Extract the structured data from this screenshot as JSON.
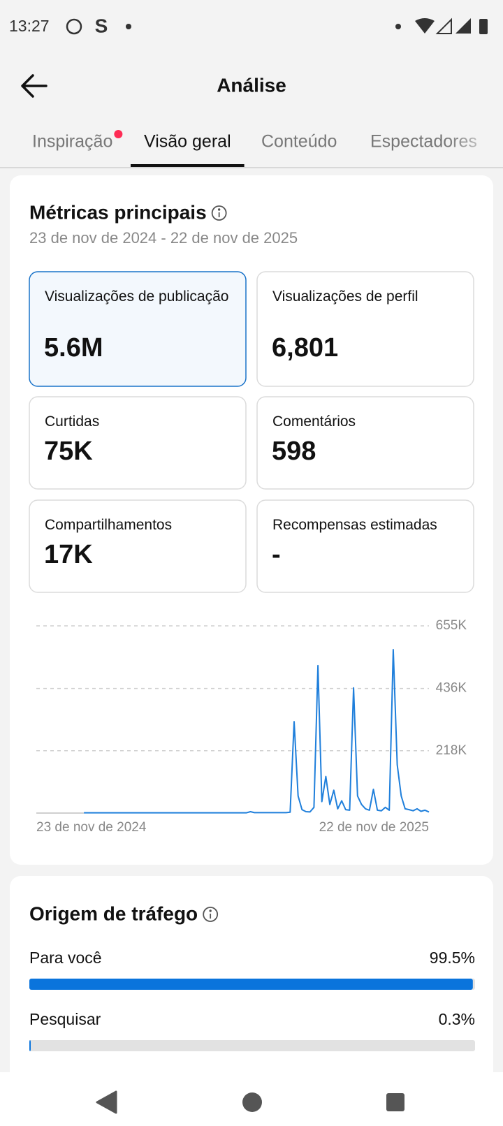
{
  "status_bar": {
    "time": "13:27",
    "app_icon": "S"
  },
  "header": {
    "title": "Análise"
  },
  "tabs": {
    "items": [
      "Inspiração",
      "Visão geral",
      "Conteúdo",
      "Espectadores"
    ],
    "active": 1
  },
  "metrics": {
    "title": "Métricas principais",
    "date_range": "23 de nov de 2024 - 22 de nov de 2025",
    "selected": 0,
    "cards": [
      {
        "label": "Visualizações de publicação",
        "value": "5.6M"
      },
      {
        "label": "Visualizações de perfil",
        "value": "6,801"
      },
      {
        "label": "Curtidas",
        "value": "75K"
      },
      {
        "label": "Comentários",
        "value": "598"
      },
      {
        "label": "Compartilhamentos",
        "value": "17K"
      },
      {
        "label": "Recompensas estimadas",
        "value": "-"
      }
    ]
  },
  "chart_data": {
    "type": "line",
    "color": "#1f7fdb",
    "grid": true,
    "ylim": [
      0,
      655000
    ],
    "yticks": [
      {
        "value": 218000,
        "label": "218K"
      },
      {
        "value": 436000,
        "label": "436K"
      },
      {
        "value": 655000,
        "label": "655K"
      }
    ],
    "categories": [
      "23 de nov de 2024",
      null,
      null,
      null,
      null,
      null,
      null,
      null,
      null,
      null,
      null,
      null,
      null,
      null,
      null,
      null,
      null,
      null,
      null,
      null,
      null,
      null,
      null,
      null,
      null,
      null,
      null,
      null,
      null,
      null,
      null,
      null,
      null,
      null,
      null,
      null,
      null,
      null,
      null,
      null,
      null,
      null,
      null,
      null,
      null,
      null,
      null,
      null,
      null,
      null,
      null,
      null,
      null,
      null,
      null,
      null,
      null,
      null,
      null,
      null,
      null,
      null,
      null,
      null,
      null,
      null,
      null,
      null,
      null,
      null,
      null,
      null,
      null,
      null,
      null,
      null,
      null,
      null,
      null,
      null,
      null,
      null,
      null,
      null,
      null,
      null,
      null,
      null,
      null,
      null,
      null,
      null,
      null,
      null,
      null,
      null,
      null,
      null,
      null,
      "22 de nov de 2025"
    ],
    "values": [
      null,
      null,
      null,
      null,
      null,
      null,
      null,
      null,
      null,
      null,
      null,
      null,
      1000,
      1000,
      1000,
      1000,
      1000,
      1000,
      1000,
      1000,
      1000,
      1000,
      1000,
      1000,
      1000,
      1000,
      1000,
      1000,
      1000,
      1000,
      1000,
      1000,
      1000,
      1000,
      1000,
      1000,
      1000,
      1000,
      1000,
      1000,
      1000,
      1000,
      1000,
      1000,
      1000,
      1000,
      1000,
      1000,
      1000,
      1000,
      1000,
      1000,
      1000,
      1000,
      5000,
      1500,
      1500,
      1500,
      1500,
      1500,
      1500,
      1500,
      1500,
      1500,
      3000,
      320000,
      60000,
      12000,
      5000,
      4000,
      20000,
      516000,
      40000,
      128000,
      30000,
      80000,
      15000,
      43000,
      12000,
      10000,
      438000,
      60000,
      30000,
      15000,
      10000,
      83000,
      10000,
      8000,
      20000,
      10000,
      572000,
      169000,
      60000,
      15000,
      12000,
      8000,
      15000,
      6000,
      10000,
      4000
    ]
  },
  "traffic": {
    "title": "Origem de tráfego",
    "color": "#0a74dc",
    "xlim": [
      0,
      100
    ],
    "categories": [
      "Para você",
      "Pesquisar"
    ],
    "values": [
      99.5,
      0.3
    ],
    "value_labels": [
      "99.5%",
      "0.3%"
    ]
  }
}
